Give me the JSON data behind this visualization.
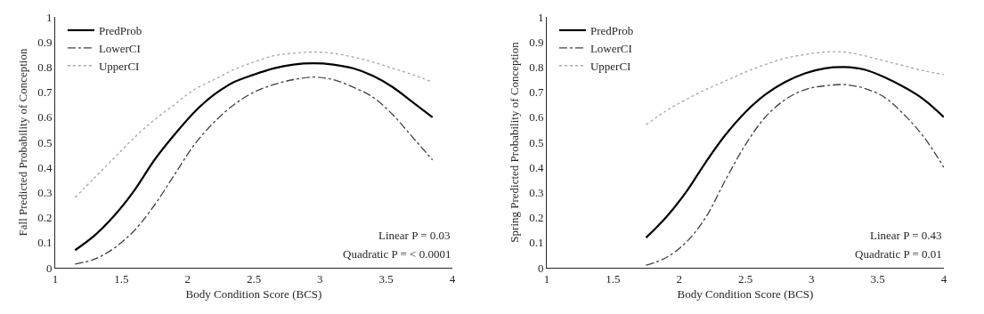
{
  "chart_data": [
    {
      "type": "line",
      "xlabel": "Body Condition Score (BCS)",
      "ylabel": "Fall Predicted Probability of Conception",
      "xlim": [
        1,
        4
      ],
      "xticks": [
        1,
        1.5,
        2,
        2.5,
        3,
        3.5,
        4
      ],
      "ylim": [
        0,
        1
      ],
      "yticks": [
        0,
        0.1,
        0.2,
        0.3,
        0.4,
        0.5,
        0.6,
        0.7,
        0.8,
        0.9,
        1
      ],
      "grid": false,
      "legend": "top left",
      "x": [
        1.15,
        1.3,
        1.45,
        1.6,
        1.75,
        1.9,
        2.05,
        2.2,
        2.35,
        2.5,
        2.65,
        2.8,
        2.95,
        3.1,
        3.25,
        3.4,
        3.55,
        3.7,
        3.85
      ],
      "series": [
        {
          "name": "PredProb",
          "color": "#000000",
          "line_style": "solid",
          "values": [
            0.07,
            0.13,
            0.21,
            0.31,
            0.43,
            0.53,
            0.62,
            0.69,
            0.74,
            0.77,
            0.795,
            0.81,
            0.815,
            0.81,
            0.795,
            0.765,
            0.72,
            0.66,
            0.6
          ]
        },
        {
          "name": "LowerCI",
          "color": "#404040",
          "line_style": "dashed",
          "values": [
            0.015,
            0.035,
            0.08,
            0.15,
            0.25,
            0.37,
            0.49,
            0.58,
            0.65,
            0.7,
            0.73,
            0.75,
            0.76,
            0.75,
            0.72,
            0.68,
            0.61,
            0.52,
            0.43
          ]
        },
        {
          "name": "UpperCI",
          "color": "#a6a6a6",
          "line_style": "dotted",
          "values": [
            0.28,
            0.36,
            0.44,
            0.52,
            0.59,
            0.65,
            0.71,
            0.75,
            0.79,
            0.82,
            0.845,
            0.855,
            0.86,
            0.855,
            0.84,
            0.82,
            0.795,
            0.77,
            0.74
          ]
        }
      ],
      "annotations": [
        "Linear P = 0.03",
        "Quadratic P = < 0.0001"
      ]
    },
    {
      "type": "line",
      "xlabel": "Body Condition Score (BCS)",
      "ylabel": "Spring Predicted Probability of Conception",
      "xlim": [
        1,
        4
      ],
      "xticks": [
        1,
        1.5,
        2,
        2.5,
        3,
        3.5,
        4
      ],
      "ylim": [
        0,
        1
      ],
      "yticks": [
        0,
        0.1,
        0.2,
        0.3,
        0.4,
        0.5,
        0.6,
        0.7,
        0.8,
        0.9,
        1
      ],
      "grid": false,
      "legend": "top left",
      "x": [
        1.75,
        1.9,
        2.05,
        2.2,
        2.35,
        2.5,
        2.65,
        2.8,
        2.95,
        3.1,
        3.25,
        3.4,
        3.55,
        3.7,
        3.85,
        4.0
      ],
      "series": [
        {
          "name": "PredProb",
          "color": "#000000",
          "line_style": "solid",
          "values": [
            0.12,
            0.2,
            0.3,
            0.42,
            0.53,
            0.62,
            0.69,
            0.74,
            0.775,
            0.795,
            0.8,
            0.79,
            0.76,
            0.72,
            0.67,
            0.6
          ]
        },
        {
          "name": "LowerCI",
          "color": "#404040",
          "line_style": "dashed",
          "values": [
            0.01,
            0.04,
            0.1,
            0.2,
            0.35,
            0.49,
            0.6,
            0.67,
            0.71,
            0.725,
            0.73,
            0.715,
            0.68,
            0.61,
            0.52,
            0.4
          ]
        },
        {
          "name": "UpperCI",
          "color": "#a6a6a6",
          "line_style": "dotted",
          "values": [
            0.57,
            0.625,
            0.67,
            0.71,
            0.745,
            0.78,
            0.81,
            0.835,
            0.85,
            0.86,
            0.86,
            0.845,
            0.825,
            0.805,
            0.785,
            0.77
          ]
        }
      ],
      "annotations": [
        "Linear P = 0.43",
        "Quadratic P = 0.01"
      ]
    }
  ]
}
